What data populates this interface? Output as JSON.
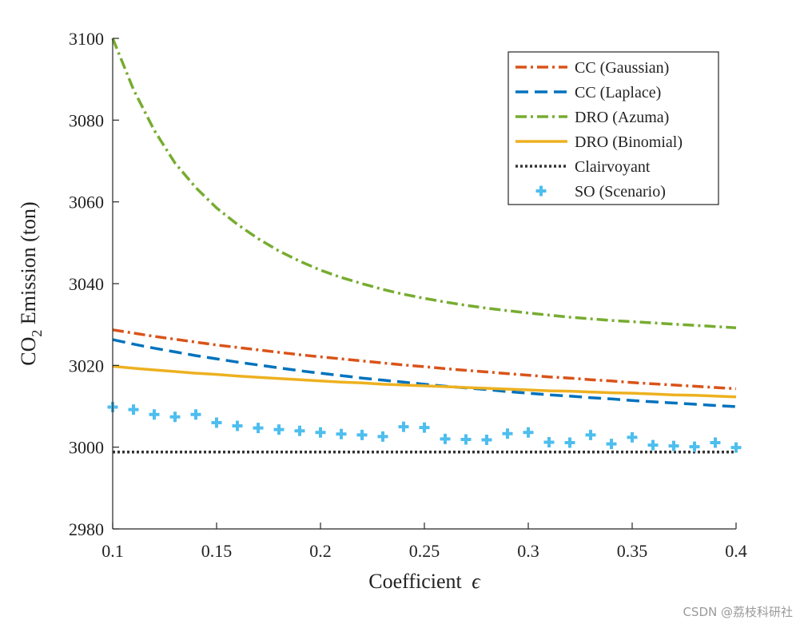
{
  "chart_data": {
    "type": "line",
    "title": "",
    "xlabel": "Coefficient",
    "xlabel_symbol": "ϵ",
    "ylabel_prefix": "CO",
    "ylabel_sub": "2",
    "ylabel_suffix": " Emission (ton)",
    "xlim": [
      0.1,
      0.4
    ],
    "ylim": [
      2980,
      3100
    ],
    "xticks": [
      0.1,
      0.15,
      0.2,
      0.25,
      0.3,
      0.35,
      0.4
    ],
    "xtick_labels": [
      "0.1",
      "0.15",
      "0.2",
      "0.25",
      "0.3",
      "0.35",
      "0.4"
    ],
    "yticks": [
      2980,
      3000,
      3020,
      3040,
      3060,
      3080,
      3100
    ],
    "ytick_labels": [
      "2980",
      "3000",
      "3020",
      "3040",
      "3060",
      "3080",
      "3100"
    ],
    "grid": false,
    "legend_position": "top-right",
    "x": [
      0.1,
      0.11,
      0.12,
      0.13,
      0.14,
      0.15,
      0.16,
      0.17,
      0.18,
      0.19,
      0.2,
      0.21,
      0.22,
      0.23,
      0.24,
      0.25,
      0.26,
      0.27,
      0.28,
      0.29,
      0.3,
      0.31,
      0.32,
      0.33,
      0.34,
      0.35,
      0.36,
      0.37,
      0.38,
      0.39,
      0.4
    ],
    "series": [
      {
        "name": "CC (Gaussian)",
        "style": "dashdot",
        "color": "#D95319",
        "values": [
          3028.7,
          3027.9,
          3027.1,
          3026.4,
          3025.7,
          3025.0,
          3024.4,
          3023.8,
          3023.2,
          3022.6,
          3022.1,
          3021.6,
          3021.1,
          3020.6,
          3020.1,
          3019.7,
          3019.2,
          3018.8,
          3018.4,
          3018.0,
          3017.6,
          3017.2,
          3016.9,
          3016.5,
          3016.2,
          3015.8,
          3015.5,
          3015.2,
          3014.9,
          3014.6,
          3014.3
        ]
      },
      {
        "name": "CC (Laplace)",
        "style": "dashed",
        "color": "#0072BD",
        "values": [
          3026.3,
          3025.2,
          3024.2,
          3023.3,
          3022.4,
          3021.6,
          3020.8,
          3020.1,
          3019.4,
          3018.7,
          3018.1,
          3017.5,
          3016.9,
          3016.4,
          3015.9,
          3015.4,
          3014.9,
          3014.5,
          3014.1,
          3013.6,
          3013.2,
          3012.8,
          3012.5,
          3012.1,
          3011.8,
          3011.4,
          3011.1,
          3010.8,
          3010.5,
          3010.2,
          3009.9
        ]
      },
      {
        "name": "DRO (Azuma)",
        "style": "dashdot",
        "color": "#77AC30",
        "values": [
          3100.0,
          3087.5,
          3077.5,
          3069.5,
          3063.5,
          3058.5,
          3054.5,
          3051.0,
          3048.0,
          3045.5,
          3043.3,
          3041.5,
          3040.0,
          3038.6,
          3037.4,
          3036.4,
          3035.5,
          3034.7,
          3034.0,
          3033.4,
          3032.8,
          3032.3,
          3031.8,
          3031.4,
          3031.0,
          3030.7,
          3030.4,
          3030.1,
          3029.8,
          3029.5,
          3029.2
        ]
      },
      {
        "name": "DRO (Binomial)",
        "style": "solid",
        "color": "#EDB120",
        "values": [
          3019.8,
          3019.3,
          3018.9,
          3018.5,
          3018.1,
          3017.8,
          3017.4,
          3017.1,
          3016.8,
          3016.5,
          3016.2,
          3015.9,
          3015.7,
          3015.4,
          3015.2,
          3015.0,
          3014.8,
          3014.6,
          3014.4,
          3014.2,
          3014.0,
          3013.8,
          3013.7,
          3013.5,
          3013.3,
          3013.2,
          3013.0,
          3012.8,
          3012.7,
          3012.5,
          3012.3
        ]
      },
      {
        "name": "Clairvoyant",
        "style": "dotted",
        "color": "#333333",
        "values": [
          2998.8,
          2998.8,
          2998.8,
          2998.8,
          2998.8,
          2998.8,
          2998.8,
          2998.8,
          2998.8,
          2998.8,
          2998.8,
          2998.8,
          2998.8,
          2998.8,
          2998.8,
          2998.8,
          2998.8,
          2998.8,
          2998.8,
          2998.8,
          2998.8,
          2998.8,
          2998.8,
          2998.8,
          2998.8,
          2998.8,
          2998.8,
          2998.8,
          2998.8,
          2998.8,
          2998.8
        ]
      },
      {
        "name": "SO (Scenario)",
        "style": "markers",
        "marker": "+",
        "color": "#4DBEEE",
        "values": [
          3009.8,
          3009.2,
          3008.0,
          3007.4,
          3008.0,
          3006.0,
          3005.2,
          3004.7,
          3004.3,
          3004.0,
          3003.6,
          3003.2,
          3003.0,
          3002.6,
          3005.0,
          3004.8,
          3002.0,
          3001.9,
          3001.8,
          3003.3,
          3003.6,
          3001.2,
          3001.1,
          3003.0,
          3000.8,
          3002.4,
          3000.5,
          3000.3,
          3000.1,
          3001.1,
          2999.9
        ]
      }
    ]
  },
  "watermark": "CSDN @荔枝科研社"
}
